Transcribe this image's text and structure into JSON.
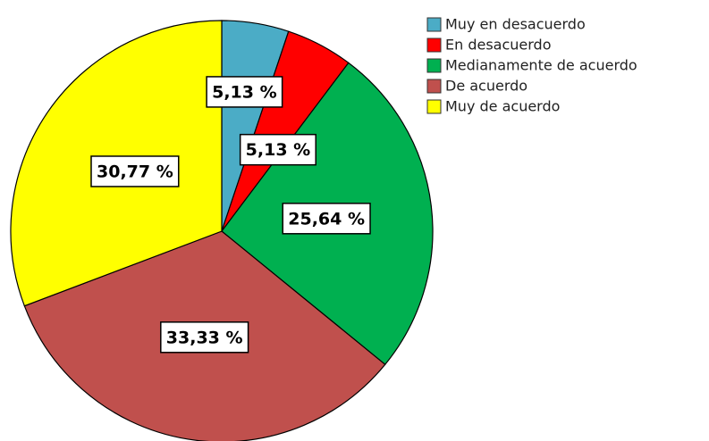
{
  "chart_data": {
    "type": "pie",
    "categories": [
      "Muy en desacuerdo",
      "En desacuerdo",
      "Medianamente de acuerdo",
      "De acuerdo",
      "Muy de acuerdo"
    ],
    "values": [
      5.13,
      5.13,
      25.64,
      33.33,
      30.77
    ],
    "value_labels": [
      "5,13 %",
      "5,13 %",
      "25,64 %",
      "33,33 %",
      "30,77 %"
    ],
    "colors": [
      "#4bacc6",
      "#ff0000",
      "#00b050",
      "#c0504d",
      "#ffff00"
    ],
    "legend": "top-right"
  }
}
